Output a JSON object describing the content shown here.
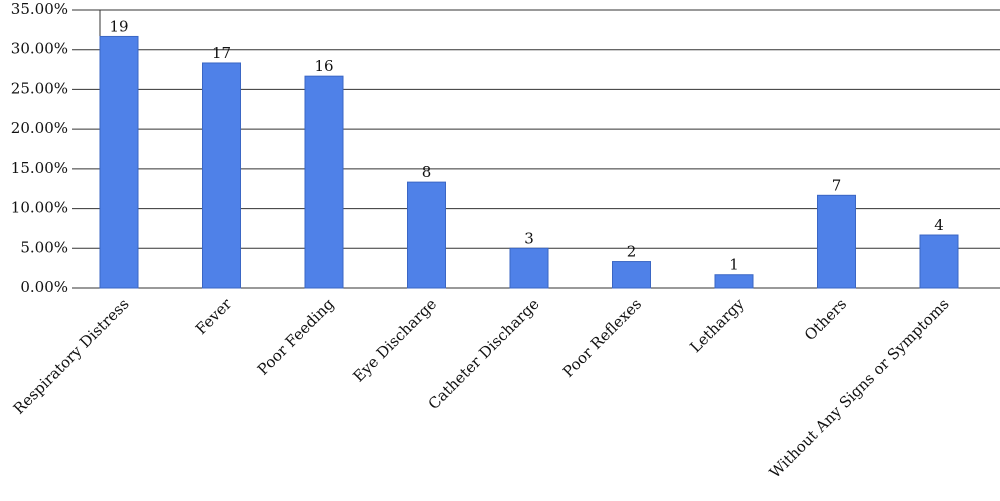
{
  "chart_data": {
    "type": "bar",
    "categories": [
      "Respiratory Distress",
      "Fever",
      "Poor Feeding",
      "Eye Discharge",
      "Catheter Discharge",
      "Poor Reflexes",
      "Lethargy",
      "Others",
      "Without Any Signs or Symptoms"
    ],
    "values": [
      31.67,
      28.33,
      26.67,
      13.33,
      5,
      3.33,
      1.67,
      11.67,
      6.67
    ],
    "counts": [
      19,
      17,
      16,
      8,
      3,
      2,
      1,
      7,
      4
    ],
    "color": "#4f81e8",
    "ylim": [
      0,
      35
    ],
    "yticks": [
      {
        "value": 0,
        "label": "0.00%"
      },
      {
        "value": 5,
        "label": "5.00%"
      },
      {
        "value": 10,
        "label": "10.00%"
      },
      {
        "value": 15,
        "label": "15.00%"
      },
      {
        "value": 20,
        "label": "20.00%"
      },
      {
        "value": 25,
        "label": "25.00%"
      },
      {
        "value": 30,
        "label": "30.00%"
      },
      {
        "value": 35,
        "label": "35.00%"
      }
    ],
    "grid": true
  }
}
